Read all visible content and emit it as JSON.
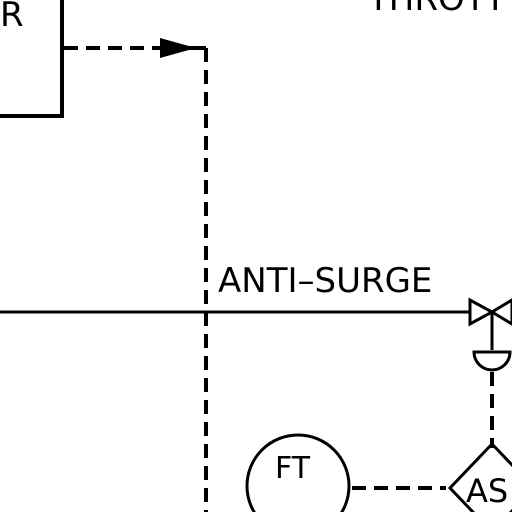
{
  "labels": {
    "box_partial": "R",
    "throttle_partial": "THROTT",
    "anti_surge": "ANTI–SURGE",
    "ft_instrument": "FT",
    "as_instrument": "AS"
  }
}
